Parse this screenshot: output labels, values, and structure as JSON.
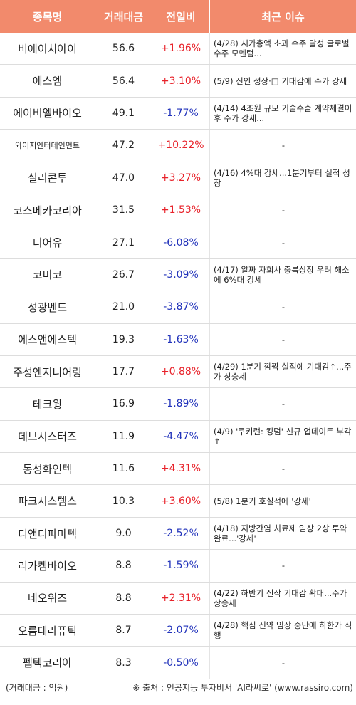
{
  "header": {
    "col_name": "종목명",
    "col_volume": "거래대금",
    "col_change": "전일비",
    "col_issue": "최근 이슈"
  },
  "colors": {
    "header_bg": "#f28a6c",
    "up": "#e8222a",
    "down": "#2233bb"
  },
  "rows": [
    {
      "name": "비에이치아이",
      "volume": "56.6",
      "change": "+1.96%",
      "dir": "up",
      "issue": "(4/28) 시가총액 초과 수주 달성 글로벌 수주 모멘텀..."
    },
    {
      "name": "에스엠",
      "volume": "56.4",
      "change": "+3.10%",
      "dir": "up",
      "issue": "(5/9) 신인 성장·□ 기대감에 주가 강세"
    },
    {
      "name": "에이비엘바이오",
      "volume": "49.1",
      "change": "-1.77%",
      "dir": "down",
      "issue": "(4/14) 4조원 규모 기술수출 계약체결이후 주가 강세..."
    },
    {
      "name": "와이지엔터테인먼트",
      "volume": "47.2",
      "change": "+10.22%",
      "dir": "up",
      "issue": "-"
    },
    {
      "name": "실리콘투",
      "volume": "47.0",
      "change": "+3.27%",
      "dir": "up",
      "issue": "(4/16) 4%대 강세...1분기부터 실적 성장"
    },
    {
      "name": "코스메카코리아",
      "volume": "31.5",
      "change": "+1.53%",
      "dir": "up",
      "issue": "-"
    },
    {
      "name": "디어유",
      "volume": "27.1",
      "change": "-6.08%",
      "dir": "down",
      "issue": "-"
    },
    {
      "name": "코미코",
      "volume": "26.7",
      "change": "-3.09%",
      "dir": "down",
      "issue": "(4/17) 알짜 자회사 중복상장 우려 해소에 6%대 강세"
    },
    {
      "name": "성광벤드",
      "volume": "21.0",
      "change": "-3.87%",
      "dir": "down",
      "issue": "-"
    },
    {
      "name": "에스앤에스텍",
      "volume": "19.3",
      "change": "-1.63%",
      "dir": "down",
      "issue": "-"
    },
    {
      "name": "주성엔지니어링",
      "volume": "17.7",
      "change": "+0.88%",
      "dir": "up",
      "issue": "(4/29) 1분기 깜짝 실적에 기대감↑...주가 상승세"
    },
    {
      "name": "테크윙",
      "volume": "16.9",
      "change": "-1.89%",
      "dir": "down",
      "issue": "-"
    },
    {
      "name": "데브시스터즈",
      "volume": "11.9",
      "change": "-4.47%",
      "dir": "down",
      "issue": "(4/9) '쿠키런: 킹덤' 신규 업데이트 부각↑"
    },
    {
      "name": "동성화인텍",
      "volume": "11.6",
      "change": "+4.31%",
      "dir": "up",
      "issue": "-"
    },
    {
      "name": "파크시스템스",
      "volume": "10.3",
      "change": "+3.60%",
      "dir": "up",
      "issue": "(5/8) 1분기 호실적에 '강세'"
    },
    {
      "name": "디앤디파마텍",
      "volume": "9.0",
      "change": "-2.52%",
      "dir": "down",
      "issue": "(4/18) 지방간염 치료제 임상 2상 투약 완료...'강세'"
    },
    {
      "name": "리가켐바이오",
      "volume": "8.8",
      "change": "-1.59%",
      "dir": "down",
      "issue": "-"
    },
    {
      "name": "네오위즈",
      "volume": "8.8",
      "change": "+2.31%",
      "dir": "up",
      "issue": "(4/22) 하반기 신작 기대감 확대...주가 상승세"
    },
    {
      "name": "오름테라퓨틱",
      "volume": "8.7",
      "change": "-2.07%",
      "dir": "down",
      "issue": "(4/28) 핵심 신약 임상 중단에 하한가 직행"
    },
    {
      "name": "펩텍코리아",
      "volume": "8.3",
      "change": "-0.50%",
      "dir": "down",
      "issue": "-"
    }
  ],
  "footer": {
    "unit_note": "(거래대금 : 억원)",
    "source_note": "※ 출처 : 인공지능 투자비서 'AI라씨로' (www.rassiro.com)"
  }
}
